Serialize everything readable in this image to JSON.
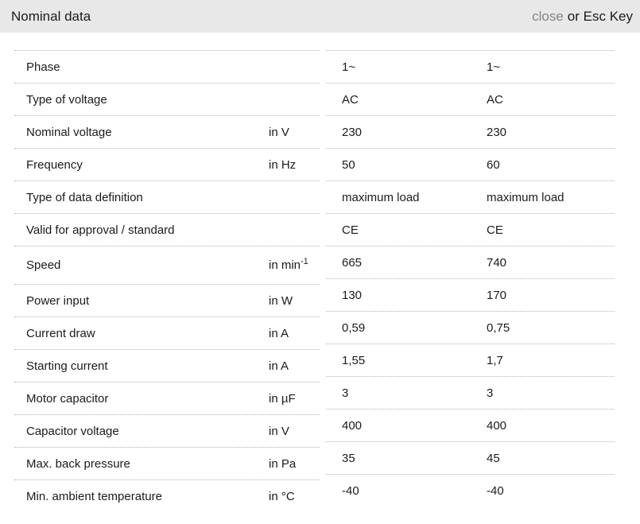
{
  "header": {
    "title": "Nominal data",
    "close_label": "close",
    "close_suffix": "or Esc Key"
  },
  "colors": {
    "titlebar_bg": "#e8e8e8",
    "divider": "#b3b3b3",
    "text": "#1b1b1b",
    "close_link": "#868686"
  },
  "table": {
    "rows": [
      {
        "label": "Phase",
        "unit": "",
        "values": [
          "1~",
          "1~"
        ]
      },
      {
        "label": "Type of voltage",
        "unit": "",
        "values": [
          "AC",
          "AC"
        ]
      },
      {
        "label": "Nominal voltage",
        "unit": "in V",
        "values": [
          "230",
          "230"
        ]
      },
      {
        "label": "Frequency",
        "unit": "in Hz",
        "values": [
          "50",
          "60"
        ]
      },
      {
        "label": "Type of data definition",
        "unit": "",
        "values": [
          "maximum load",
          "maximum load"
        ]
      },
      {
        "label": "Valid for approval / standard",
        "unit": "",
        "values": [
          "CE",
          "CE"
        ]
      },
      {
        "label": "Speed",
        "unit": "in min",
        "unit_sup": "-1",
        "values": [
          "665",
          "740"
        ]
      },
      {
        "label": "Power input",
        "unit": "in W",
        "values": [
          "130",
          "170"
        ]
      },
      {
        "label": "Current draw",
        "unit": "in A",
        "values": [
          "0,59",
          "0,75"
        ]
      },
      {
        "label": "Starting current",
        "unit": "in A",
        "values": [
          "1,55",
          "1,7"
        ]
      },
      {
        "label": "Motor capacitor",
        "unit": "in µF",
        "values": [
          "3",
          "3"
        ]
      },
      {
        "label": "Capacitor voltage",
        "unit": "in V",
        "values": [
          "400",
          "400"
        ]
      },
      {
        "label": "Max. back pressure",
        "unit": "in Pa",
        "values": [
          "35",
          "45"
        ]
      },
      {
        "label": "Min. ambient temperature",
        "unit": "in °C",
        "values": [
          "-40",
          "-40"
        ]
      }
    ]
  }
}
